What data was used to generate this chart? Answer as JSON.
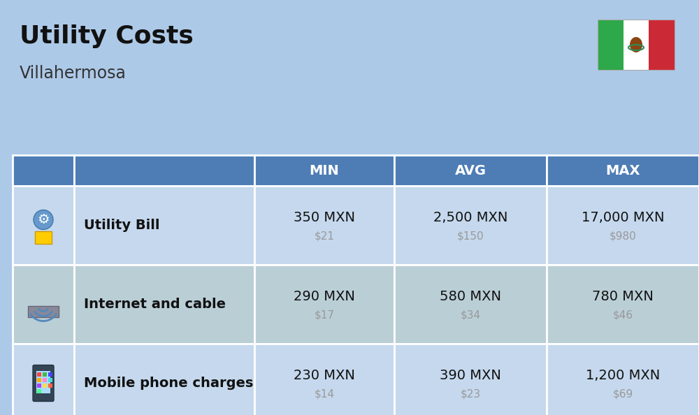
{
  "title": "Utility Costs",
  "subtitle": "Villahermosa",
  "background_color": "#adc9e8",
  "header_bg_color": "#4e7db5",
  "header_text_color": "#ffffff",
  "row_bg_color_even": "#c5d8ed",
  "row_bg_color_odd": "#baced6",
  "table_border_color": "#ffffff",
  "rows": [
    {
      "label": "Utility Bill",
      "min_mxn": "350 MXN",
      "min_usd": "$21",
      "avg_mxn": "2,500 MXN",
      "avg_usd": "$150",
      "max_mxn": "17,000 MXN",
      "max_usd": "$980"
    },
    {
      "label": "Internet and cable",
      "min_mxn": "290 MXN",
      "min_usd": "$17",
      "avg_mxn": "580 MXN",
      "avg_usd": "$34",
      "max_mxn": "780 MXN",
      "max_usd": "$46"
    },
    {
      "label": "Mobile phone charges",
      "min_mxn": "230 MXN",
      "min_usd": "$14",
      "avg_mxn": "390 MXN",
      "avg_usd": "$23",
      "max_mxn": "1,200 MXN",
      "max_usd": "$69"
    }
  ],
  "flag_green": "#2da84a",
  "flag_white": "#ffffff",
  "flag_red": "#cc2936",
  "mxn_fontsize": 14,
  "usd_fontsize": 11,
  "usd_color": "#999999",
  "label_fontsize": 14,
  "header_fontsize": 14,
  "title_fontsize": 26,
  "subtitle_fontsize": 17
}
